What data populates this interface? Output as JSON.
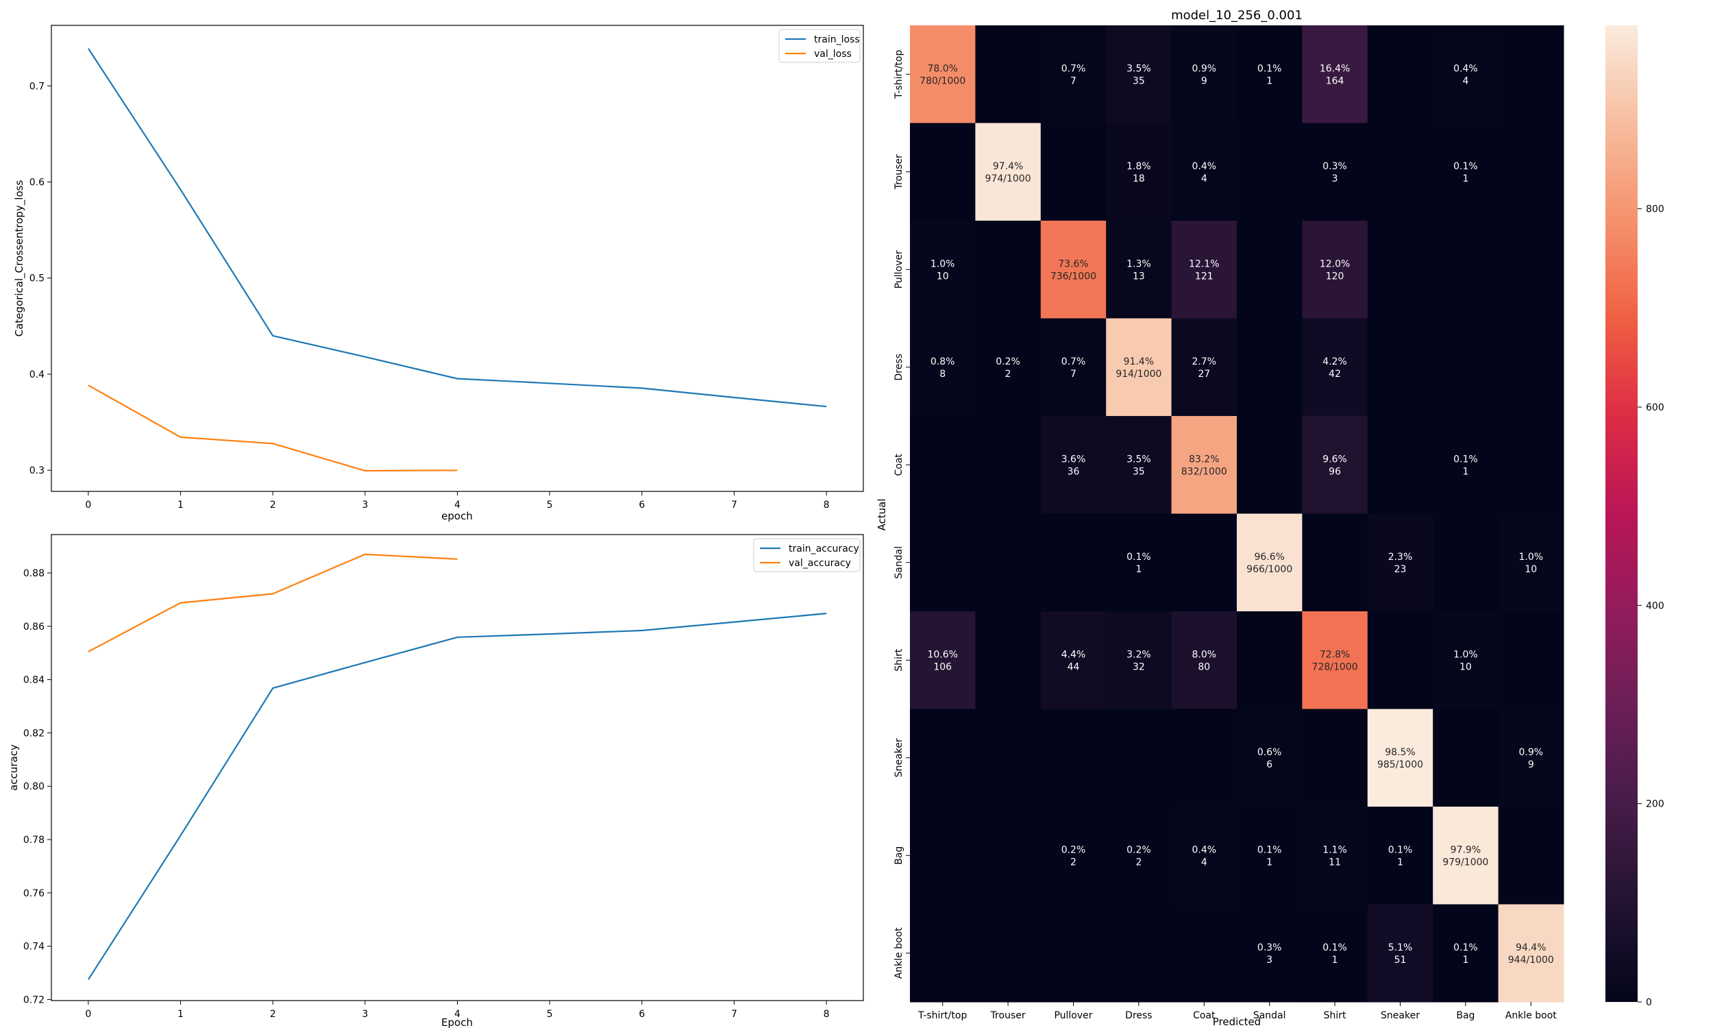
{
  "chart_data": [
    {
      "type": "line",
      "title": "",
      "xlabel": "epoch",
      "ylabel": "Categorical_Crossentropy_loss",
      "xlim": [
        -0.4,
        8.4
      ],
      "ylim": [
        0.278,
        0.763
      ],
      "xticks": [
        "0",
        "1",
        "2",
        "3",
        "4",
        "5",
        "6",
        "7",
        "8"
      ],
      "yticks": [
        "0.3",
        "0.4",
        "0.5",
        "0.6",
        "0.7"
      ],
      "ytick_values": [
        0.3,
        0.4,
        0.5,
        0.6,
        0.7
      ],
      "legend_position": "upper-right",
      "grid": false,
      "series": [
        {
          "name": "train_loss",
          "color": "#1f77b4",
          "x": [
            0,
            1,
            2,
            3,
            4,
            5,
            6,
            7,
            8
          ],
          "y": [
            0.7388,
            0.5921,
            0.44,
            0.418,
            0.3953,
            0.3905,
            0.3854,
            0.3757,
            0.3663
          ]
        },
        {
          "name": "val_loss",
          "color": "#ff7f0e",
          "x": [
            0,
            1,
            2,
            3,
            4
          ],
          "y": [
            0.3884,
            0.3344,
            0.3278,
            0.2995,
            0.2999
          ]
        }
      ]
    },
    {
      "type": "line",
      "title": "",
      "xlabel": "Epoch",
      "ylabel": "accuracy",
      "xlim": [
        -0.4,
        8.4
      ],
      "ylim": [
        0.7196,
        0.8944
      ],
      "xticks": [
        "0",
        "1",
        "2",
        "3",
        "4",
        "5",
        "6",
        "7",
        "8"
      ],
      "yticks": [
        "0.72",
        "0.74",
        "0.76",
        "0.78",
        "0.80",
        "0.82",
        "0.84",
        "0.86",
        "0.88"
      ],
      "ytick_values": [
        0.72,
        0.74,
        0.76,
        0.78,
        0.8,
        0.82,
        0.84,
        0.86,
        0.88
      ],
      "legend_position": "upper-right",
      "grid": false,
      "series": [
        {
          "name": "train_accuracy",
          "color": "#1f77b4",
          "x": [
            0,
            1,
            2,
            3,
            4,
            5,
            6,
            7,
            8
          ],
          "y": [
            0.7275,
            0.7815,
            0.8368,
            0.8464,
            0.8559,
            0.8571,
            0.8584,
            0.8616,
            0.8648
          ]
        },
        {
          "name": "val_accuracy",
          "color": "#ff7f0e",
          "x": [
            0,
            1,
            2,
            3,
            4
          ],
          "y": [
            0.8505,
            0.8688,
            0.8722,
            0.887,
            0.8852
          ]
        }
      ]
    },
    {
      "type": "heatmap",
      "title": "model_10_256_0.001",
      "xlabel": "Predicted",
      "ylabel": "Actual",
      "colormap": "rocket",
      "colorbar_ticks": [
        0,
        200,
        400,
        600,
        800
      ],
      "color_range": [
        0,
        985
      ],
      "classes": [
        "T-shirt/top",
        "Trouser",
        "Pullover",
        "Dress",
        "Coat",
        "Sandal",
        "Shirt",
        "Sneaker",
        "Bag",
        "Ankle boot"
      ],
      "matrix": [
        [
          780,
          0,
          7,
          35,
          9,
          1,
          164,
          0,
          4,
          0
        ],
        [
          0,
          974,
          0,
          18,
          4,
          0,
          3,
          0,
          1,
          0
        ],
        [
          10,
          0,
          736,
          13,
          121,
          0,
          120,
          0,
          0,
          0
        ],
        [
          8,
          2,
          7,
          914,
          27,
          0,
          42,
          0,
          0,
          0
        ],
        [
          0,
          0,
          36,
          35,
          832,
          0,
          96,
          0,
          1,
          0
        ],
        [
          0,
          0,
          0,
          1,
          0,
          966,
          0,
          23,
          0,
          10
        ],
        [
          106,
          0,
          44,
          32,
          80,
          0,
          728,
          0,
          10,
          0
        ],
        [
          0,
          0,
          0,
          0,
          0,
          6,
          0,
          985,
          0,
          9
        ],
        [
          0,
          0,
          2,
          2,
          4,
          1,
          11,
          1,
          979,
          0
        ],
        [
          0,
          0,
          0,
          0,
          0,
          3,
          1,
          51,
          1,
          944
        ]
      ],
      "cell_labels": [
        [
          [
            "78.0%",
            "780/1000"
          ],
          [
            "",
            ""
          ],
          [
            "0.7%",
            "7"
          ],
          [
            "3.5%",
            "35"
          ],
          [
            "0.9%",
            "9"
          ],
          [
            "0.1%",
            "1"
          ],
          [
            "16.4%",
            "164"
          ],
          [
            "",
            ""
          ],
          [
            "0.4%",
            "4"
          ],
          [
            "",
            ""
          ]
        ],
        [
          [
            "",
            ""
          ],
          [
            "97.4%",
            "974/1000"
          ],
          [
            "",
            ""
          ],
          [
            "1.8%",
            "18"
          ],
          [
            "0.4%",
            "4"
          ],
          [
            "",
            ""
          ],
          [
            "0.3%",
            "3"
          ],
          [
            "",
            ""
          ],
          [
            "0.1%",
            "1"
          ],
          [
            "",
            ""
          ]
        ],
        [
          [
            "1.0%",
            "10"
          ],
          [
            "",
            ""
          ],
          [
            "73.6%",
            "736/1000"
          ],
          [
            "1.3%",
            "13"
          ],
          [
            "12.1%",
            "121"
          ],
          [
            "",
            ""
          ],
          [
            "12.0%",
            "120"
          ],
          [
            "",
            ""
          ],
          [
            "",
            ""
          ],
          [
            "",
            ""
          ]
        ],
        [
          [
            "0.8%",
            "8"
          ],
          [
            "0.2%",
            "2"
          ],
          [
            "0.7%",
            "7"
          ],
          [
            "91.4%",
            "914/1000"
          ],
          [
            "2.7%",
            "27"
          ],
          [
            "",
            ""
          ],
          [
            "4.2%",
            "42"
          ],
          [
            "",
            ""
          ],
          [
            "",
            ""
          ],
          [
            "",
            ""
          ]
        ],
        [
          [
            "",
            ""
          ],
          [
            "",
            ""
          ],
          [
            "3.6%",
            "36"
          ],
          [
            "3.5%",
            "35"
          ],
          [
            "83.2%",
            "832/1000"
          ],
          [
            "",
            ""
          ],
          [
            "9.6%",
            "96"
          ],
          [
            "",
            ""
          ],
          [
            "0.1%",
            "1"
          ],
          [
            "",
            ""
          ]
        ],
        [
          [
            "",
            ""
          ],
          [
            "",
            ""
          ],
          [
            "",
            ""
          ],
          [
            "0.1%",
            "1"
          ],
          [
            "",
            ""
          ],
          [
            "96.6%",
            "966/1000"
          ],
          [
            "",
            ""
          ],
          [
            "2.3%",
            "23"
          ],
          [
            "",
            ""
          ],
          [
            "1.0%",
            "10"
          ]
        ],
        [
          [
            "10.6%",
            "106"
          ],
          [
            "",
            ""
          ],
          [
            "4.4%",
            "44"
          ],
          [
            "3.2%",
            "32"
          ],
          [
            "8.0%",
            "80"
          ],
          [
            "",
            ""
          ],
          [
            "72.8%",
            "728/1000"
          ],
          [
            "",
            ""
          ],
          [
            "1.0%",
            "10"
          ],
          [
            "",
            ""
          ]
        ],
        [
          [
            "",
            ""
          ],
          [
            "",
            ""
          ],
          [
            "",
            ""
          ],
          [
            "",
            ""
          ],
          [
            "",
            ""
          ],
          [
            "0.6%",
            "6"
          ],
          [
            "",
            ""
          ],
          [
            "98.5%",
            "985/1000"
          ],
          [
            "",
            ""
          ],
          [
            "0.9%",
            "9"
          ]
        ],
        [
          [
            "",
            ""
          ],
          [
            "",
            ""
          ],
          [
            "0.2%",
            "2"
          ],
          [
            "0.2%",
            "2"
          ],
          [
            "0.4%",
            "4"
          ],
          [
            "0.1%",
            "1"
          ],
          [
            "1.1%",
            "11"
          ],
          [
            "0.1%",
            "1"
          ],
          [
            "97.9%",
            "979/1000"
          ],
          [
            "",
            ""
          ]
        ],
        [
          [
            "",
            ""
          ],
          [
            "",
            ""
          ],
          [
            "",
            ""
          ],
          [
            "",
            ""
          ],
          [
            "",
            ""
          ],
          [
            "0.3%",
            "3"
          ],
          [
            "0.1%",
            "1"
          ],
          [
            "5.1%",
            "51"
          ],
          [
            "0.1%",
            "1"
          ],
          [
            "94.4%",
            "944/1000"
          ]
        ]
      ]
    }
  ]
}
